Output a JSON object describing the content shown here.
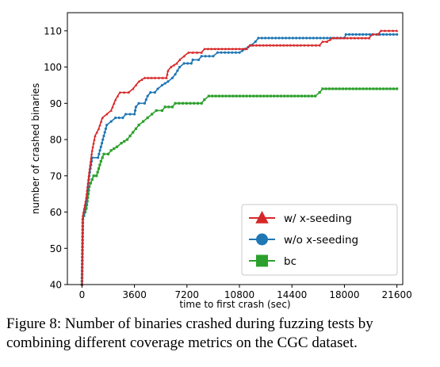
{
  "chart_data": {
    "type": "line",
    "title": "",
    "xlabel": "time to first crash (sec)",
    "ylabel": "number of crashed binaries",
    "xlim": [
      -1000,
      22000
    ],
    "ylim": [
      40,
      115
    ],
    "xticks": [
      0,
      3600,
      7200,
      10800,
      14400,
      18000,
      21600
    ],
    "yticks": [
      40,
      50,
      60,
      70,
      80,
      90,
      100,
      110
    ],
    "grid": false,
    "legend_position": "lower-right",
    "series": [
      {
        "name": "w/ x-seeding",
        "color": "#d62728",
        "marker": "triangle",
        "points": [
          [
            0,
            40
          ],
          [
            60,
            59
          ],
          [
            300,
            64
          ],
          [
            500,
            71
          ],
          [
            700,
            77
          ],
          [
            900,
            81
          ],
          [
            1150,
            83
          ],
          [
            1400,
            86
          ],
          [
            1700,
            87
          ],
          [
            2000,
            88
          ],
          [
            2300,
            91
          ],
          [
            2600,
            93
          ],
          [
            3200,
            93
          ],
          [
            3500,
            94
          ],
          [
            3900,
            96
          ],
          [
            4300,
            97
          ],
          [
            5000,
            97
          ],
          [
            5800,
            97
          ],
          [
            5900,
            99
          ],
          [
            6100,
            100
          ],
          [
            6500,
            101
          ],
          [
            6700,
            102
          ],
          [
            7000,
            103
          ],
          [
            7300,
            104
          ],
          [
            8200,
            104
          ],
          [
            8400,
            105
          ],
          [
            10800,
            105
          ],
          [
            11300,
            105
          ],
          [
            11500,
            106
          ],
          [
            15000,
            106
          ],
          [
            16300,
            106
          ],
          [
            16500,
            107
          ],
          [
            16800,
            107
          ],
          [
            17200,
            108
          ],
          [
            19700,
            108
          ],
          [
            19900,
            109
          ],
          [
            20300,
            109
          ],
          [
            20500,
            110
          ],
          [
            21600,
            110
          ]
        ]
      },
      {
        "name": "w/o x-seeding",
        "color": "#1f77b4",
        "marker": "circle",
        "points": [
          [
            0,
            40
          ],
          [
            60,
            58
          ],
          [
            300,
            63
          ],
          [
            500,
            70
          ],
          [
            700,
            75
          ],
          [
            1100,
            75
          ],
          [
            1300,
            78
          ],
          [
            1500,
            81
          ],
          [
            1700,
            84
          ],
          [
            2000,
            85
          ],
          [
            2300,
            86
          ],
          [
            2800,
            86
          ],
          [
            3000,
            87
          ],
          [
            3600,
            87
          ],
          [
            3700,
            89
          ],
          [
            3900,
            90
          ],
          [
            4300,
            90
          ],
          [
            4500,
            92
          ],
          [
            4700,
            93
          ],
          [
            5000,
            93
          ],
          [
            5200,
            94
          ],
          [
            5500,
            95
          ],
          [
            5900,
            96
          ],
          [
            6200,
            97
          ],
          [
            6400,
            98
          ],
          [
            6700,
            100
          ],
          [
            7000,
            101
          ],
          [
            7500,
            101
          ],
          [
            7600,
            102
          ],
          [
            8000,
            102
          ],
          [
            8200,
            103
          ],
          [
            9000,
            103
          ],
          [
            9300,
            104
          ],
          [
            10800,
            104
          ],
          [
            11200,
            105
          ],
          [
            11600,
            106
          ],
          [
            11900,
            107
          ],
          [
            12100,
            108
          ],
          [
            18000,
            108
          ],
          [
            18100,
            109
          ],
          [
            21600,
            109
          ]
        ]
      },
      {
        "name": "bc",
        "color": "#2ca02c",
        "marker": "square",
        "points": [
          [
            0,
            40
          ],
          [
            60,
            58
          ],
          [
            300,
            61
          ],
          [
            500,
            67
          ],
          [
            800,
            70
          ],
          [
            1000,
            70
          ],
          [
            1300,
            74
          ],
          [
            1500,
            76
          ],
          [
            1800,
            76
          ],
          [
            2000,
            77
          ],
          [
            2400,
            78
          ],
          [
            2700,
            79
          ],
          [
            3100,
            80
          ],
          [
            3300,
            81
          ],
          [
            3500,
            82
          ],
          [
            3700,
            83
          ],
          [
            3900,
            84
          ],
          [
            4200,
            85
          ],
          [
            4500,
            86
          ],
          [
            4800,
            87
          ],
          [
            5100,
            88
          ],
          [
            5500,
            88
          ],
          [
            5700,
            89
          ],
          [
            6200,
            89
          ],
          [
            6400,
            90
          ],
          [
            8200,
            90
          ],
          [
            8400,
            91
          ],
          [
            8700,
            92
          ],
          [
            12000,
            92
          ],
          [
            16000,
            92
          ],
          [
            16300,
            93
          ],
          [
            16500,
            94
          ],
          [
            21600,
            94
          ]
        ]
      }
    ]
  },
  "caption": "Figure 8: Number of binaries crashed during fuzzing tests by combining different coverage metrics on the CGC dataset."
}
